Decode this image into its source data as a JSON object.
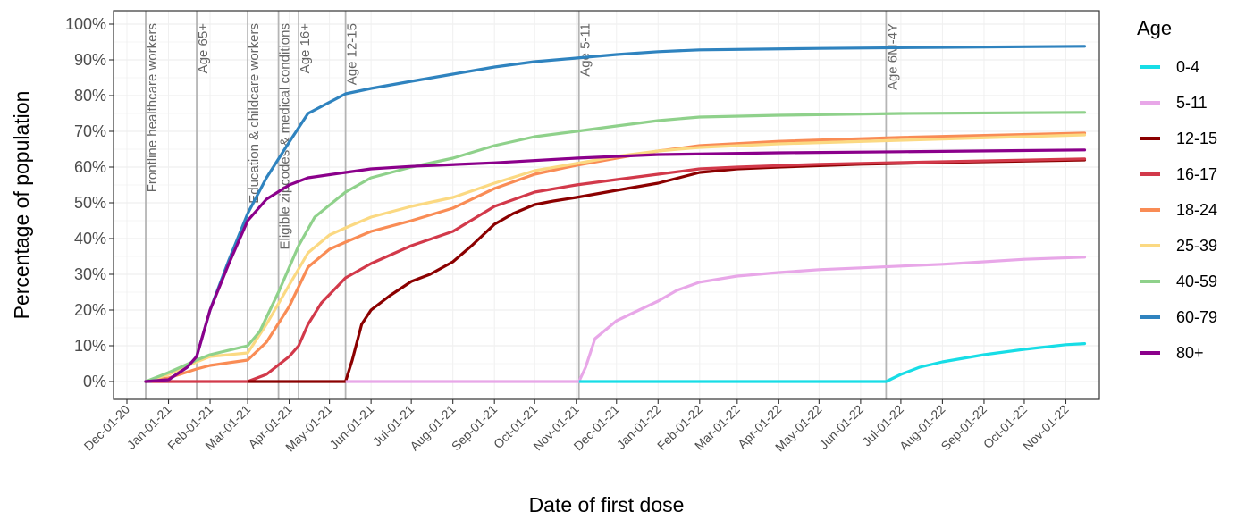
{
  "chart_data": {
    "type": "line",
    "xlabel": "Date of first dose",
    "ylabel": "Percentage of population",
    "ylim": [
      0,
      100
    ],
    "x_ticks": [
      "Dec-01-20",
      "Jan-01-21",
      "Feb-01-21",
      "Mar-01-21",
      "Apr-01-21",
      "May-01-21",
      "Jun-01-21",
      "Jul-01-21",
      "Aug-01-21",
      "Sep-01-21",
      "Oct-01-21",
      "Nov-01-21",
      "Dec-01-21",
      "Jan-01-22",
      "Feb-01-22",
      "Mar-01-22",
      "Apr-01-22",
      "May-01-22",
      "Jun-01-22",
      "Jul-01-22",
      "Aug-01-22",
      "Sep-01-22",
      "Oct-01-22",
      "Nov-01-22"
    ],
    "y_ticks": [
      "0%",
      "10%",
      "20%",
      "30%",
      "40%",
      "50%",
      "60%",
      "70%",
      "80%",
      "90%",
      "100%"
    ],
    "legend_title": "Age",
    "legend_position": "right",
    "grid": true,
    "events": [
      {
        "date": "2020-12-15",
        "label": "Frontline healthcare workers"
      },
      {
        "date": "2021-01-22",
        "label": "Age 65+"
      },
      {
        "date": "2021-03-01",
        "label": "Education & childcare workers"
      },
      {
        "date": "2021-03-24",
        "label": "Eligible zipcodes & medical conditions"
      },
      {
        "date": "2021-04-08",
        "label": "Age 16+"
      },
      {
        "date": "2021-05-13",
        "label": "Age 12-15"
      },
      {
        "date": "2021-11-03",
        "label": "Age 5-11"
      },
      {
        "date": "2022-06-20",
        "label": "Age 6M-4Y"
      }
    ],
    "series": [
      {
        "name": "0-4",
        "color": "#17dde6",
        "points": [
          [
            "2022-06-20",
            0
          ],
          [
            "2022-07-01",
            2
          ],
          [
            "2022-07-15",
            4
          ],
          [
            "2022-08-01",
            5.5
          ],
          [
            "2022-09-01",
            7.5
          ],
          [
            "2022-10-01",
            9
          ],
          [
            "2022-11-01",
            10.3
          ],
          [
            "2022-11-15",
            10.6
          ]
        ]
      },
      {
        "name": "5-11",
        "color": "#e8a7e8",
        "points": [
          [
            "2021-11-03",
            0
          ],
          [
            "2021-11-08",
            4
          ],
          [
            "2021-11-15",
            12
          ],
          [
            "2021-12-01",
            17
          ],
          [
            "2021-12-15",
            19.5
          ],
          [
            "2022-01-01",
            22.5
          ],
          [
            "2022-01-15",
            25.5
          ],
          [
            "2022-02-01",
            27.8
          ],
          [
            "2022-03-01",
            29.5
          ],
          [
            "2022-04-01",
            30.5
          ],
          [
            "2022-05-01",
            31.3
          ],
          [
            "2022-06-01",
            31.8
          ],
          [
            "2022-07-01",
            32.3
          ],
          [
            "2022-08-01",
            32.8
          ],
          [
            "2022-09-01",
            33.5
          ],
          [
            "2022-10-01",
            34.2
          ],
          [
            "2022-11-15",
            34.8
          ]
        ]
      },
      {
        "name": "12-15",
        "color": "#8b0000",
        "points": [
          [
            "2021-05-13",
            0
          ],
          [
            "2021-05-18",
            6
          ],
          [
            "2021-05-25",
            16
          ],
          [
            "2021-06-01",
            20
          ],
          [
            "2021-06-15",
            24
          ],
          [
            "2021-07-01",
            28
          ],
          [
            "2021-07-15",
            30
          ],
          [
            "2021-08-01",
            33.5
          ],
          [
            "2021-08-15",
            38
          ],
          [
            "2021-09-01",
            44
          ],
          [
            "2021-09-15",
            47
          ],
          [
            "2021-10-01",
            49.5
          ],
          [
            "2021-10-15",
            50.5
          ],
          [
            "2021-11-01",
            51.5
          ],
          [
            "2021-12-01",
            53.5
          ],
          [
            "2022-01-01",
            55.5
          ],
          [
            "2022-02-01",
            58.5
          ],
          [
            "2022-03-01",
            59.5
          ],
          [
            "2022-04-01",
            60
          ],
          [
            "2022-06-01",
            60.8
          ],
          [
            "2022-08-01",
            61.3
          ],
          [
            "2022-11-15",
            62
          ]
        ]
      },
      {
        "name": "16-17",
        "color": "#d2394a",
        "points": [
          [
            "2020-12-15",
            0
          ],
          [
            "2021-03-01",
            0
          ],
          [
            "2021-03-15",
            2
          ],
          [
            "2021-04-01",
            7
          ],
          [
            "2021-04-08",
            10
          ],
          [
            "2021-04-15",
            16
          ],
          [
            "2021-04-25",
            22
          ],
          [
            "2021-05-13",
            29
          ],
          [
            "2021-06-01",
            33
          ],
          [
            "2021-07-01",
            38
          ],
          [
            "2021-08-01",
            42
          ],
          [
            "2021-09-01",
            49
          ],
          [
            "2021-10-01",
            53
          ],
          [
            "2021-11-01",
            55
          ],
          [
            "2021-12-01",
            56.5
          ],
          [
            "2022-01-01",
            58
          ],
          [
            "2022-02-01",
            59.5
          ],
          [
            "2022-03-01",
            60
          ],
          [
            "2022-05-01",
            60.8
          ],
          [
            "2022-08-01",
            61.5
          ],
          [
            "2022-11-15",
            62.3
          ]
        ]
      },
      {
        "name": "18-24",
        "color": "#f98c55",
        "points": [
          [
            "2020-12-15",
            0
          ],
          [
            "2021-01-01",
            1
          ],
          [
            "2021-01-22",
            3.5
          ],
          [
            "2021-02-01",
            4.5
          ],
          [
            "2021-03-01",
            6
          ],
          [
            "2021-03-15",
            11
          ],
          [
            "2021-04-01",
            21
          ],
          [
            "2021-04-15",
            32
          ],
          [
            "2021-05-01",
            37
          ],
          [
            "2021-05-13",
            39
          ],
          [
            "2021-06-01",
            42
          ],
          [
            "2021-07-01",
            45
          ],
          [
            "2021-08-01",
            48.5
          ],
          [
            "2021-09-01",
            54
          ],
          [
            "2021-10-01",
            58
          ],
          [
            "2021-11-01",
            60.5
          ],
          [
            "2021-12-01",
            62.5
          ],
          [
            "2022-01-01",
            64.5
          ],
          [
            "2022-02-01",
            66
          ],
          [
            "2022-04-01",
            67.2
          ],
          [
            "2022-07-01",
            68.3
          ],
          [
            "2022-11-15",
            69.5
          ]
        ]
      },
      {
        "name": "25-39",
        "color": "#fbd982",
        "points": [
          [
            "2020-12-15",
            0
          ],
          [
            "2021-01-01",
            2
          ],
          [
            "2021-01-22",
            5.5
          ],
          [
            "2021-02-01",
            7
          ],
          [
            "2021-03-01",
            8
          ],
          [
            "2021-03-15",
            16
          ],
          [
            "2021-04-01",
            27
          ],
          [
            "2021-04-15",
            36
          ],
          [
            "2021-05-01",
            41
          ],
          [
            "2021-05-13",
            43
          ],
          [
            "2021-06-01",
            46
          ],
          [
            "2021-07-01",
            49
          ],
          [
            "2021-08-01",
            51.5
          ],
          [
            "2021-09-01",
            55.5
          ],
          [
            "2021-10-01",
            59
          ],
          [
            "2021-11-01",
            61
          ],
          [
            "2021-12-01",
            63
          ],
          [
            "2022-01-01",
            64.5
          ],
          [
            "2022-02-01",
            65.5
          ],
          [
            "2022-04-01",
            66.5
          ],
          [
            "2022-07-01",
            67.5
          ],
          [
            "2022-11-15",
            69
          ]
        ]
      },
      {
        "name": "40-59",
        "color": "#8fd18b",
        "points": [
          [
            "2020-12-15",
            0
          ],
          [
            "2021-01-01",
            2.5
          ],
          [
            "2021-01-22",
            6
          ],
          [
            "2021-02-01",
            7.5
          ],
          [
            "2021-03-01",
            10
          ],
          [
            "2021-03-10",
            14
          ],
          [
            "2021-03-24",
            25
          ],
          [
            "2021-04-08",
            38
          ],
          [
            "2021-04-20",
            46
          ],
          [
            "2021-05-13",
            53
          ],
          [
            "2021-06-01",
            57
          ],
          [
            "2021-07-01",
            60
          ],
          [
            "2021-08-01",
            62.5
          ],
          [
            "2021-09-01",
            66
          ],
          [
            "2021-10-01",
            68.5
          ],
          [
            "2021-11-01",
            70
          ],
          [
            "2021-12-01",
            71.5
          ],
          [
            "2022-01-01",
            73
          ],
          [
            "2022-02-01",
            74
          ],
          [
            "2022-04-01",
            74.5
          ],
          [
            "2022-07-01",
            75
          ],
          [
            "2022-11-15",
            75.3
          ]
        ]
      },
      {
        "name": "60-79",
        "color": "#2f83bf",
        "points": [
          [
            "2020-12-15",
            0
          ],
          [
            "2021-01-01",
            0.5
          ],
          [
            "2021-01-15",
            4
          ],
          [
            "2021-01-22",
            7
          ],
          [
            "2021-02-01",
            20
          ],
          [
            "2021-02-15",
            34
          ],
          [
            "2021-03-01",
            47
          ],
          [
            "2021-03-15",
            57
          ],
          [
            "2021-04-01",
            67
          ],
          [
            "2021-04-15",
            75
          ],
          [
            "2021-05-13",
            80.5
          ],
          [
            "2021-06-01",
            82
          ],
          [
            "2021-07-01",
            84
          ],
          [
            "2021-08-01",
            86
          ],
          [
            "2021-09-01",
            88
          ],
          [
            "2021-10-01",
            89.5
          ],
          [
            "2021-11-01",
            90.5
          ],
          [
            "2021-12-01",
            91.5
          ],
          [
            "2022-01-01",
            92.3
          ],
          [
            "2022-02-01",
            92.8
          ],
          [
            "2022-05-01",
            93.2
          ],
          [
            "2022-08-01",
            93.5
          ],
          [
            "2022-11-15",
            93.8
          ]
        ]
      },
      {
        "name": "80+",
        "color": "#8b008b",
        "points": [
          [
            "2020-12-15",
            0
          ],
          [
            "2021-01-01",
            0.5
          ],
          [
            "2021-01-15",
            4
          ],
          [
            "2021-01-22",
            7
          ],
          [
            "2021-02-01",
            20
          ],
          [
            "2021-02-15",
            33
          ],
          [
            "2021-03-01",
            45
          ],
          [
            "2021-03-15",
            51
          ],
          [
            "2021-04-01",
            55
          ],
          [
            "2021-04-15",
            57
          ],
          [
            "2021-05-13",
            58.5
          ],
          [
            "2021-06-01",
            59.5
          ],
          [
            "2021-07-01",
            60.2
          ],
          [
            "2021-09-01",
            61.2
          ],
          [
            "2021-11-01",
            62.5
          ],
          [
            "2022-01-01",
            63.5
          ],
          [
            "2022-04-01",
            64
          ],
          [
            "2022-07-01",
            64.3
          ],
          [
            "2022-11-15",
            64.8
          ]
        ]
      }
    ]
  }
}
